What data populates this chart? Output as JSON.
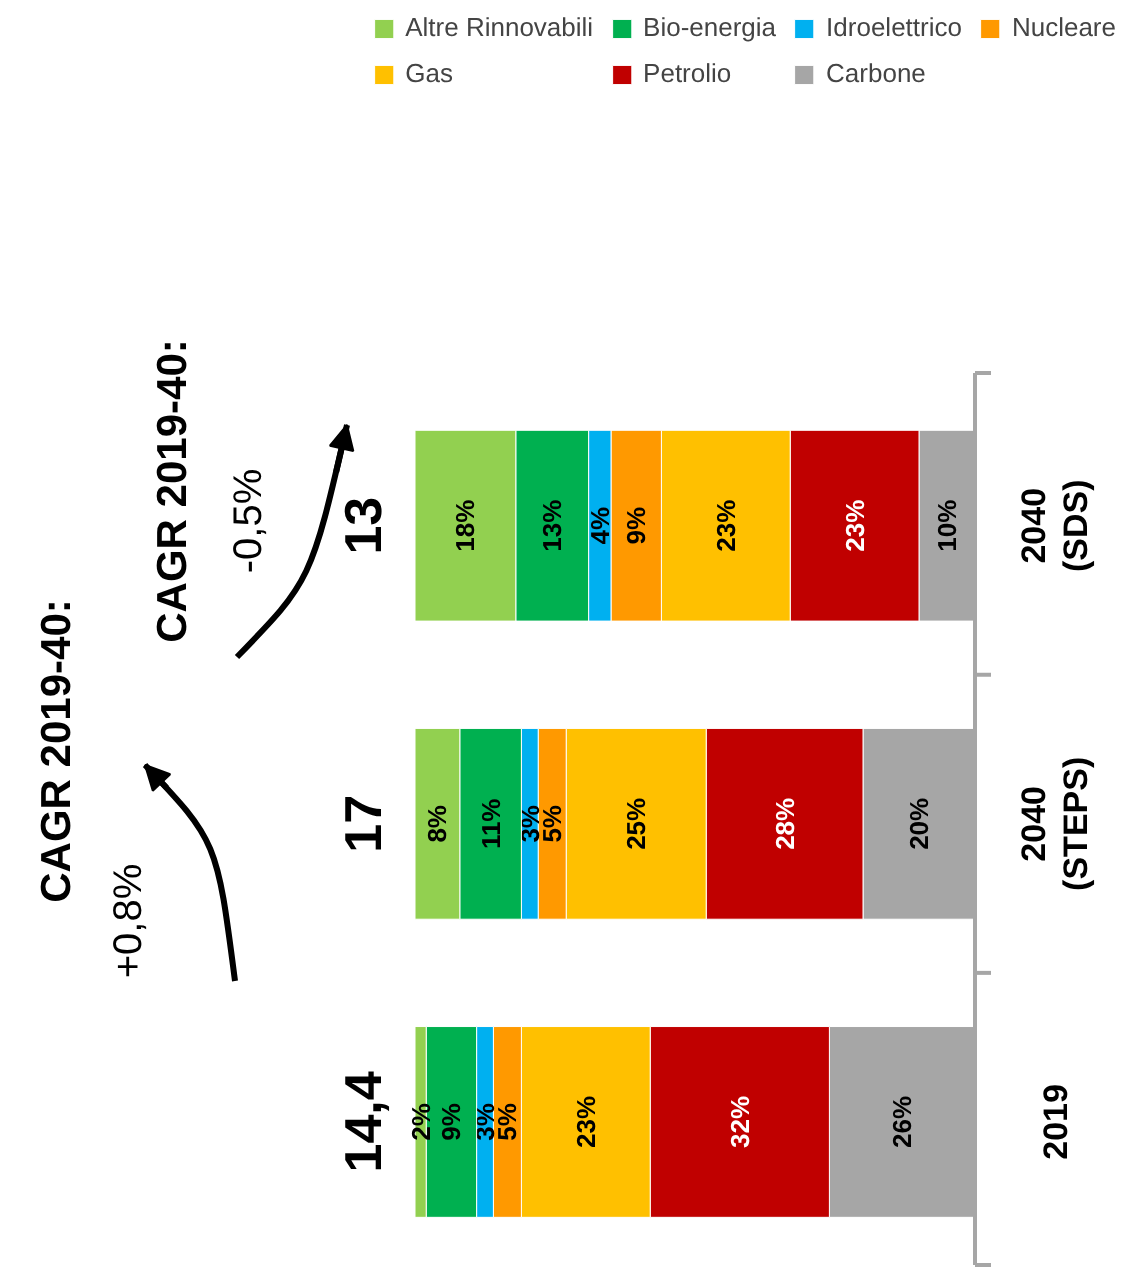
{
  "chart_data": {
    "type": "bar",
    "orientation": "horizontal",
    "stacked": true,
    "categories": [
      "2040\n(SDS)",
      "2040\n(STEPS)",
      "2019"
    ],
    "series": [
      {
        "name": "Carbone",
        "color": "#a6a6a6",
        "values": [
          10,
          20,
          26
        ],
        "value_labels": [
          "10%",
          "20%",
          "26%"
        ]
      },
      {
        "name": "Petrolio",
        "color": "#c00000",
        "values": [
          23,
          28,
          32
        ],
        "value_labels": [
          "23%",
          "28%",
          "32%"
        ]
      },
      {
        "name": "Gas",
        "color": "#ffc000",
        "values": [
          23,
          25,
          23
        ],
        "value_labels": [
          "23%",
          "25%",
          "23%"
        ]
      },
      {
        "name": "Nucleare",
        "color": "#ff9900",
        "values": [
          9,
          5,
          5
        ],
        "value_labels": [
          "9%",
          "5%",
          "5%"
        ]
      },
      {
        "name": "Idroelettrico",
        "color": "#00b0f0",
        "values": [
          4,
          3,
          3
        ],
        "value_labels": [
          "4%",
          "3%",
          "3%"
        ]
      },
      {
        "name": "Bio-energia",
        "color": "#00b050",
        "values": [
          13,
          11,
          9
        ],
        "value_labels": [
          "13%",
          "11%",
          "9%"
        ]
      },
      {
        "name": "Altre Rinnovabili",
        "color": "#92d050",
        "values": [
          18,
          8,
          2
        ],
        "value_labels": [
          "18%",
          "8%",
          "2%"
        ]
      }
    ],
    "annotations": [
      "CAGR 2019-40:",
      "+0,8%",
      "CAGR 2019-40:",
      "-0,5%",
      "13",
      "17",
      "14,4"
    ],
    "legend": "top"
  }
}
